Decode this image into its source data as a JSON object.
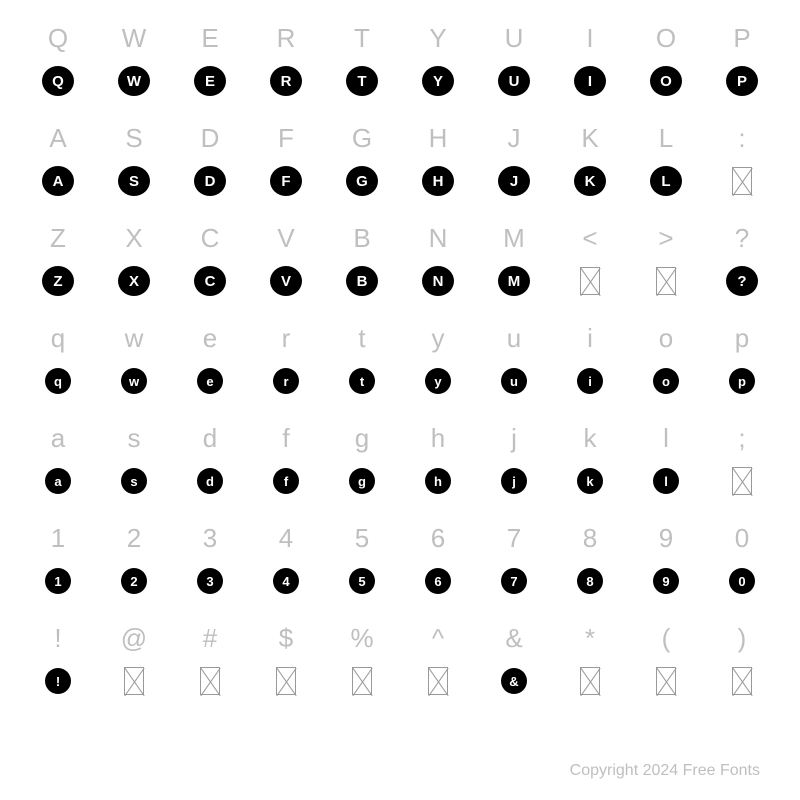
{
  "rows": [
    {
      "labels": [
        "Q",
        "W",
        "E",
        "R",
        "T",
        "Y",
        "U",
        "I",
        "O",
        "P"
      ],
      "glyphs": [
        {
          "t": "b",
          "c": "Q"
        },
        {
          "t": "b",
          "c": "W"
        },
        {
          "t": "b",
          "c": "E"
        },
        {
          "t": "b",
          "c": "R"
        },
        {
          "t": "b",
          "c": "T"
        },
        {
          "t": "b",
          "c": "Y"
        },
        {
          "t": "b",
          "c": "U"
        },
        {
          "t": "b",
          "c": "I"
        },
        {
          "t": "b",
          "c": "O"
        },
        {
          "t": "b",
          "c": "P"
        }
      ]
    },
    {
      "labels": [
        "A",
        "S",
        "D",
        "F",
        "G",
        "H",
        "J",
        "K",
        "L",
        ":"
      ],
      "glyphs": [
        {
          "t": "b",
          "c": "A"
        },
        {
          "t": "b",
          "c": "S"
        },
        {
          "t": "b",
          "c": "D"
        },
        {
          "t": "b",
          "c": "F"
        },
        {
          "t": "b",
          "c": "G"
        },
        {
          "t": "b",
          "c": "H"
        },
        {
          "t": "b",
          "c": "J"
        },
        {
          "t": "b",
          "c": "K"
        },
        {
          "t": "b",
          "c": "L"
        },
        {
          "t": "x"
        }
      ]
    },
    {
      "labels": [
        "Z",
        "X",
        "C",
        "V",
        "B",
        "N",
        "M",
        "<",
        ">",
        "?"
      ],
      "glyphs": [
        {
          "t": "b",
          "c": "Z"
        },
        {
          "t": "b",
          "c": "X"
        },
        {
          "t": "b",
          "c": "C"
        },
        {
          "t": "b",
          "c": "V"
        },
        {
          "t": "b",
          "c": "B"
        },
        {
          "t": "b",
          "c": "N"
        },
        {
          "t": "b",
          "c": "M"
        },
        {
          "t": "x"
        },
        {
          "t": "x"
        },
        {
          "t": "b",
          "c": "?"
        }
      ]
    },
    {
      "labels": [
        "q",
        "w",
        "e",
        "r",
        "t",
        "y",
        "u",
        "i",
        "o",
        "p"
      ],
      "glyphs": [
        {
          "t": "s",
          "c": "q"
        },
        {
          "t": "s",
          "c": "w"
        },
        {
          "t": "s",
          "c": "e"
        },
        {
          "t": "s",
          "c": "r"
        },
        {
          "t": "s",
          "c": "t"
        },
        {
          "t": "s",
          "c": "y"
        },
        {
          "t": "s",
          "c": "u"
        },
        {
          "t": "s",
          "c": "i"
        },
        {
          "t": "s",
          "c": "o"
        },
        {
          "t": "s",
          "c": "p"
        }
      ]
    },
    {
      "labels": [
        "a",
        "s",
        "d",
        "f",
        "g",
        "h",
        "j",
        "k",
        "l",
        ";"
      ],
      "glyphs": [
        {
          "t": "s",
          "c": "a"
        },
        {
          "t": "s",
          "c": "s"
        },
        {
          "t": "s",
          "c": "d"
        },
        {
          "t": "s",
          "c": "f"
        },
        {
          "t": "s",
          "c": "g"
        },
        {
          "t": "s",
          "c": "h"
        },
        {
          "t": "s",
          "c": "j"
        },
        {
          "t": "s",
          "c": "k"
        },
        {
          "t": "s",
          "c": "l"
        },
        {
          "t": "x"
        }
      ]
    },
    {
      "labels": [
        "1",
        "2",
        "3",
        "4",
        "5",
        "6",
        "7",
        "8",
        "9",
        "0"
      ],
      "glyphs": [
        {
          "t": "s",
          "c": "1"
        },
        {
          "t": "s",
          "c": "2"
        },
        {
          "t": "s",
          "c": "3"
        },
        {
          "t": "s",
          "c": "4"
        },
        {
          "t": "s",
          "c": "5"
        },
        {
          "t": "s",
          "c": "6"
        },
        {
          "t": "s",
          "c": "7"
        },
        {
          "t": "s",
          "c": "8"
        },
        {
          "t": "s",
          "c": "9"
        },
        {
          "t": "s",
          "c": "0"
        }
      ]
    },
    {
      "labels": [
        "!",
        "@",
        "#",
        "$",
        "%",
        "^",
        "&",
        "*",
        "(",
        ")"
      ],
      "glyphs": [
        {
          "t": "s",
          "c": "!"
        },
        {
          "t": "x"
        },
        {
          "t": "x"
        },
        {
          "t": "x"
        },
        {
          "t": "x"
        },
        {
          "t": "x"
        },
        {
          "t": "s",
          "c": "&"
        },
        {
          "t": "x"
        },
        {
          "t": "x"
        },
        {
          "t": "x"
        }
      ]
    }
  ],
  "footer": "Copyright 2024 Free Fonts",
  "colors": {
    "background": "#ffffff",
    "label": "#bfbfbf",
    "bubble_bg": "#000000",
    "bubble_fg": "#ffffff",
    "notdef": "#999999"
  }
}
